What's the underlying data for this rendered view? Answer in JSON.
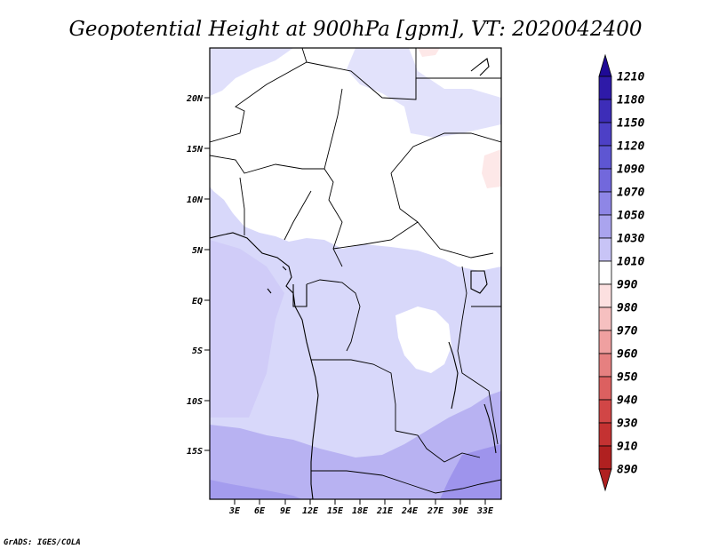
{
  "title": "Geopotential Height at 900hPa [gpm], VT: 2020042400",
  "credit": "GrADS: IGES/COLA",
  "map": {
    "lat_labels": [
      "20N",
      "15N",
      "10N",
      "5N",
      "EQ",
      "5S",
      "10S",
      "15S"
    ],
    "lon_labels": [
      "3E",
      "6E",
      "9E",
      "12E",
      "15E",
      "18E",
      "21E",
      "24E",
      "27E",
      "30E",
      "33E"
    ]
  },
  "colorbar": {
    "labels": [
      "1210",
      "1180",
      "1150",
      "1120",
      "1090",
      "1070",
      "1050",
      "1030",
      "1010",
      "990",
      "980",
      "970",
      "960",
      "950",
      "940",
      "930",
      "910",
      "890"
    ],
    "colors": [
      "#1f0a96",
      "#2e1aa8",
      "#3d2db8",
      "#4d40c6",
      "#5e56d2",
      "#7268dc",
      "#8e86e6",
      "#aaa4ee",
      "#c8c4f6",
      "#ffffff",
      "#fce0e0",
      "#f6c0c0",
      "#efa0a0",
      "#e68080",
      "#dc6060",
      "#d14646",
      "#c43232",
      "#b02020"
    ]
  }
}
